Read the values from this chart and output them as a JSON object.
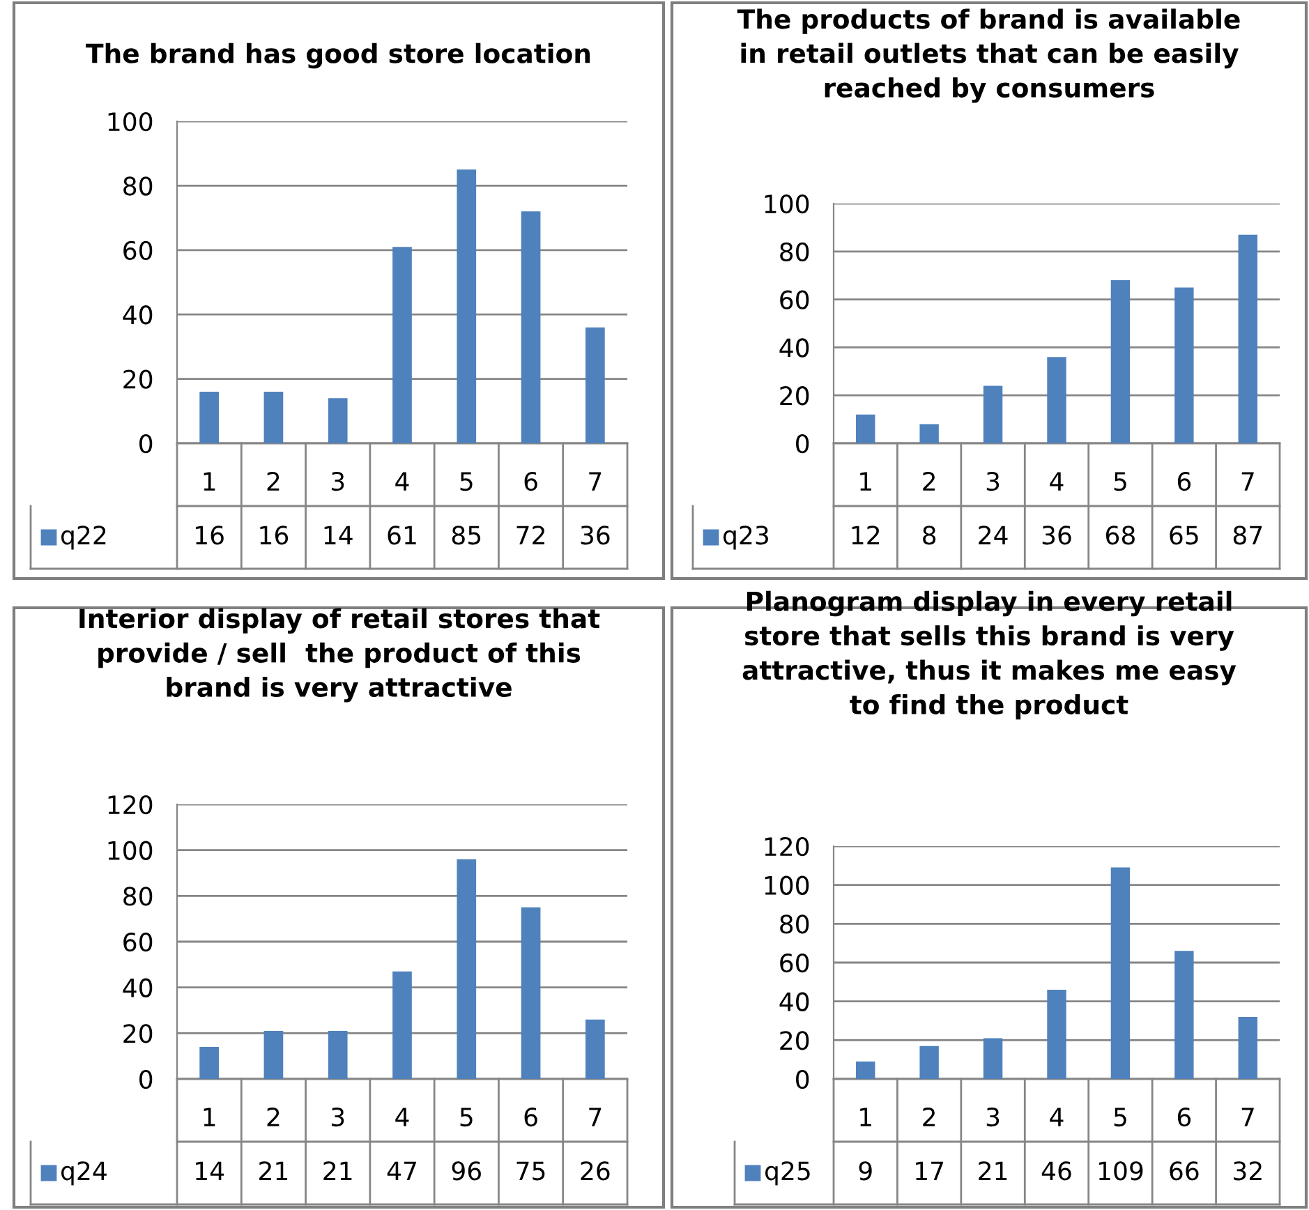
{
  "chart_data": [
    {
      "type": "bar",
      "title": "The brand has good store location",
      "categories": [
        "1",
        "2",
        "3",
        "4",
        "5",
        "6",
        "7"
      ],
      "series": [
        {
          "name": "q22",
          "color": "#4f81bd",
          "values": [
            16,
            16,
            14,
            61,
            85,
            72,
            36
          ]
        }
      ],
      "ylim": [
        0,
        100
      ],
      "yticks": [
        0,
        20,
        40,
        60,
        80,
        100
      ],
      "grid": "y",
      "data_labels": true
    },
    {
      "type": "bar",
      "title": "The products of brand is available\nin retail outlets that can be easily\nreached by consumers",
      "categories": [
        "1",
        "2",
        "3",
        "4",
        "5",
        "6",
        "7"
      ],
      "series": [
        {
          "name": "q23",
          "color": "#4f81bd",
          "values": [
            12,
            8,
            24,
            36,
            68,
            65,
            87
          ]
        }
      ],
      "ylim": [
        0,
        100
      ],
      "yticks": [
        0,
        20,
        40,
        60,
        80,
        100
      ],
      "grid": "y",
      "data_labels": true
    },
    {
      "type": "bar",
      "title": "Interior display of retail stores that\nprovide / sell  the product of this\nbrand is very attractive",
      "categories": [
        "1",
        "2",
        "3",
        "4",
        "5",
        "6",
        "7"
      ],
      "series": [
        {
          "name": "q24",
          "color": "#4f81bd",
          "values": [
            14,
            21,
            21,
            47,
            96,
            75,
            26
          ]
        }
      ],
      "ylim": [
        0,
        120
      ],
      "yticks": [
        0,
        20,
        40,
        60,
        80,
        100,
        120
      ],
      "grid": "y",
      "data_labels": true
    },
    {
      "type": "bar",
      "title": "Planogram display in every retail\nstore that sells this brand is very\nattractive, thus it makes me easy\nto find the product",
      "categories": [
        "1",
        "2",
        "3",
        "4",
        "5",
        "6",
        "7"
      ],
      "series": [
        {
          "name": "q25",
          "color": "#4f81bd",
          "values": [
            9,
            17,
            21,
            46,
            109,
            66,
            32
          ]
        }
      ],
      "ylim": [
        0,
        120
      ],
      "yticks": [
        0,
        20,
        40,
        60,
        80,
        100,
        120
      ],
      "grid": "y",
      "data_labels": true
    }
  ]
}
